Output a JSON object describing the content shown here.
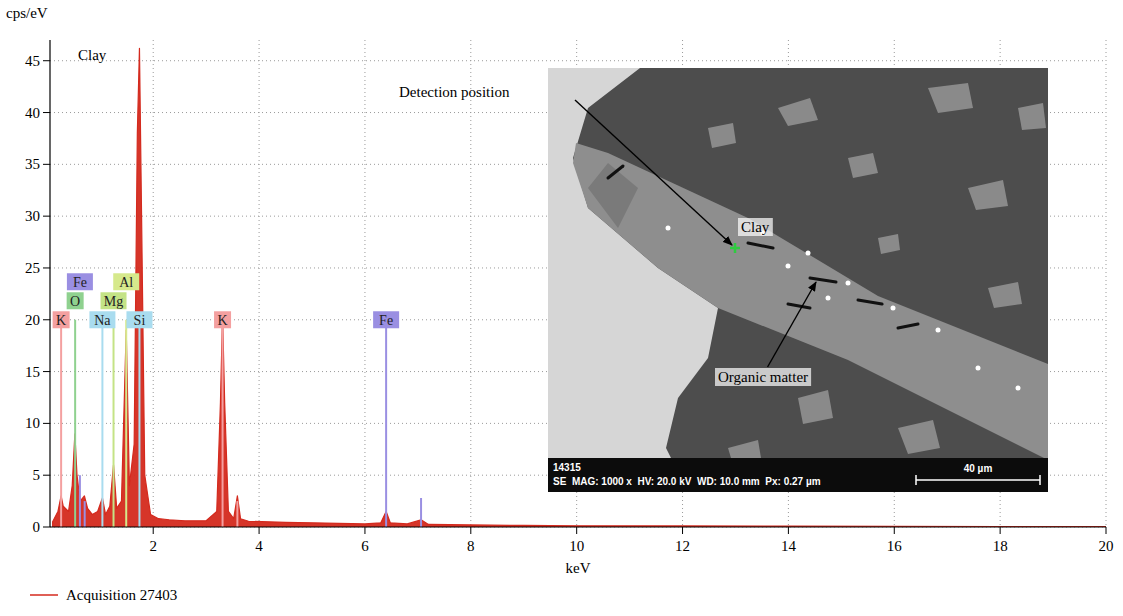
{
  "chart_data": {
    "type": "area",
    "title": "Clay",
    "x_label": "keV",
    "y_label": "cps/eV",
    "x": [
      0.1,
      0.2,
      0.26,
      0.3,
      0.4,
      0.47,
      0.52,
      0.56,
      0.62,
      0.7,
      0.76,
      0.85,
      0.95,
      1.04,
      1.1,
      1.18,
      1.25,
      1.31,
      1.4,
      1.49,
      1.55,
      1.64,
      1.7,
      1.74,
      1.78,
      1.84,
      1.95,
      2.1,
      2.3,
      2.6,
      3.0,
      3.2,
      3.27,
      3.31,
      3.35,
      3.42,
      3.52,
      3.59,
      3.65,
      3.8,
      4.5,
      5.0,
      5.5,
      6.0,
      6.3,
      6.4,
      6.48,
      6.8,
      7.06,
      7.2,
      8,
      9,
      10,
      12,
      14,
      16,
      18,
      20
    ],
    "series": [
      {
        "name": "Acquisition 27403",
        "color": "#d42a1e",
        "values": [
          0.5,
          1.5,
          3,
          2,
          1.5,
          4,
          9,
          5,
          2.5,
          3,
          1.8,
          1.2,
          1.5,
          2.8,
          1.2,
          2,
          6,
          1.8,
          2.5,
          19,
          4,
          8,
          38,
          46.2,
          30,
          5,
          1.2,
          0.8,
          0.7,
          0.6,
          0.6,
          1.5,
          12,
          20.5,
          12,
          1.5,
          0.8,
          3,
          0.8,
          0.55,
          0.45,
          0.4,
          0.35,
          0.3,
          0.4,
          1.5,
          0.4,
          0.3,
          0.7,
          0.25,
          0.2,
          0.15,
          0.12,
          0.1,
          0.08,
          0.06,
          0.05,
          0.04
        ]
      }
    ],
    "xlim": [
      0.05,
      20
    ],
    "xticks": [
      2,
      4,
      6,
      8,
      10,
      12,
      14,
      16,
      18,
      20
    ],
    "ylim": [
      0,
      47
    ],
    "yticks": [
      0,
      5,
      10,
      15,
      20,
      25,
      30,
      35,
      40,
      45
    ],
    "grid": true,
    "legend": "bottom-left",
    "element_lines": [
      {
        "label": "K",
        "color": "#f4a0a0",
        "lines": [
          {
            "x": 0.26,
            "height": 20
          }
        ]
      },
      {
        "label": "O",
        "color": "#8fd18f",
        "lines": [
          {
            "x": 0.525,
            "height": 20
          }
        ]
      },
      {
        "label": "Fe",
        "color": "#9a8fe2",
        "lines": [
          {
            "x": 0.615,
            "height": 5
          },
          {
            "x": 0.705,
            "height": 2.5
          }
        ]
      },
      {
        "label": "Na",
        "color": "#a9dcef",
        "lines": [
          {
            "x": 1.04,
            "height": 20
          }
        ]
      },
      {
        "label": "Mg",
        "color": "#c4e386",
        "lines": [
          {
            "x": 1.25,
            "height": 20
          }
        ]
      },
      {
        "label": "Al",
        "color": "#d6e98c",
        "lines": [
          {
            "x": 1.49,
            "height": 20
          }
        ]
      },
      {
        "label": "Si",
        "color": "#a9dcef",
        "lines": [
          {
            "x": 1.74,
            "height": 20
          }
        ]
      },
      {
        "label": "K",
        "color": "#f4a0a0",
        "lines": [
          {
            "x": 3.31,
            "height": 20
          },
          {
            "x": 3.59,
            "height": 2.5
          }
        ]
      },
      {
        "label": "Fe",
        "color": "#9a8fe2",
        "lines": [
          {
            "x": 6.4,
            "height": 20
          },
          {
            "x": 7.06,
            "height": 2.8
          }
        ]
      }
    ],
    "inset": {
      "sample_id": "14315",
      "info": "SE  MAG: 1000 x  HV: 20.0 kV  WD: 10.0 mm  Px: 0.27 µm",
      "scale_bar": "40 µm",
      "labels": [
        "Detection position",
        "Clay",
        "Organic matter"
      ]
    }
  }
}
